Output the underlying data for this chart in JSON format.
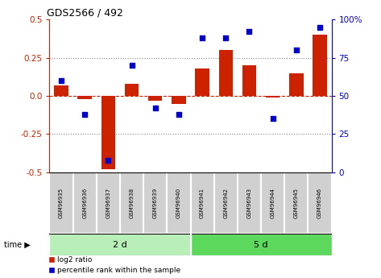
{
  "title": "GDS2566 / 492",
  "samples": [
    "GSM96935",
    "GSM96936",
    "GSM96937",
    "GSM96938",
    "GSM96939",
    "GSM96940",
    "GSM96941",
    "GSM96942",
    "GSM96943",
    "GSM96944",
    "GSM96945",
    "GSM96946"
  ],
  "log2_ratio": [
    0.07,
    -0.02,
    -0.48,
    0.08,
    -0.03,
    -0.05,
    0.18,
    0.3,
    0.2,
    -0.01,
    0.15,
    0.4
  ],
  "pct_rank": [
    60,
    38,
    8,
    70,
    42,
    38,
    88,
    88,
    92,
    35,
    80,
    95
  ],
  "groups": [
    {
      "label": "2 d",
      "start": 0,
      "end": 6
    },
    {
      "label": "5 d",
      "start": 6,
      "end": 12
    }
  ],
  "bar_color": "#cc2200",
  "dot_color": "#0000cc",
  "bar_width": 0.6,
  "ylim_left": [
    -0.5,
    0.5
  ],
  "ylim_right": [
    0,
    100
  ],
  "yticks_left": [
    -0.5,
    -0.25,
    0.0,
    0.25,
    0.5
  ],
  "yticks_right": [
    0,
    25,
    50,
    75,
    100
  ],
  "hline_color": "#cc2200",
  "dotted_color": "#888888",
  "group_color_1": "#b8efb8",
  "group_color_2": "#5cd85c",
  "time_label": "time",
  "legend_bar_label": "log2 ratio",
  "legend_dot_label": "percentile rank within the sample"
}
